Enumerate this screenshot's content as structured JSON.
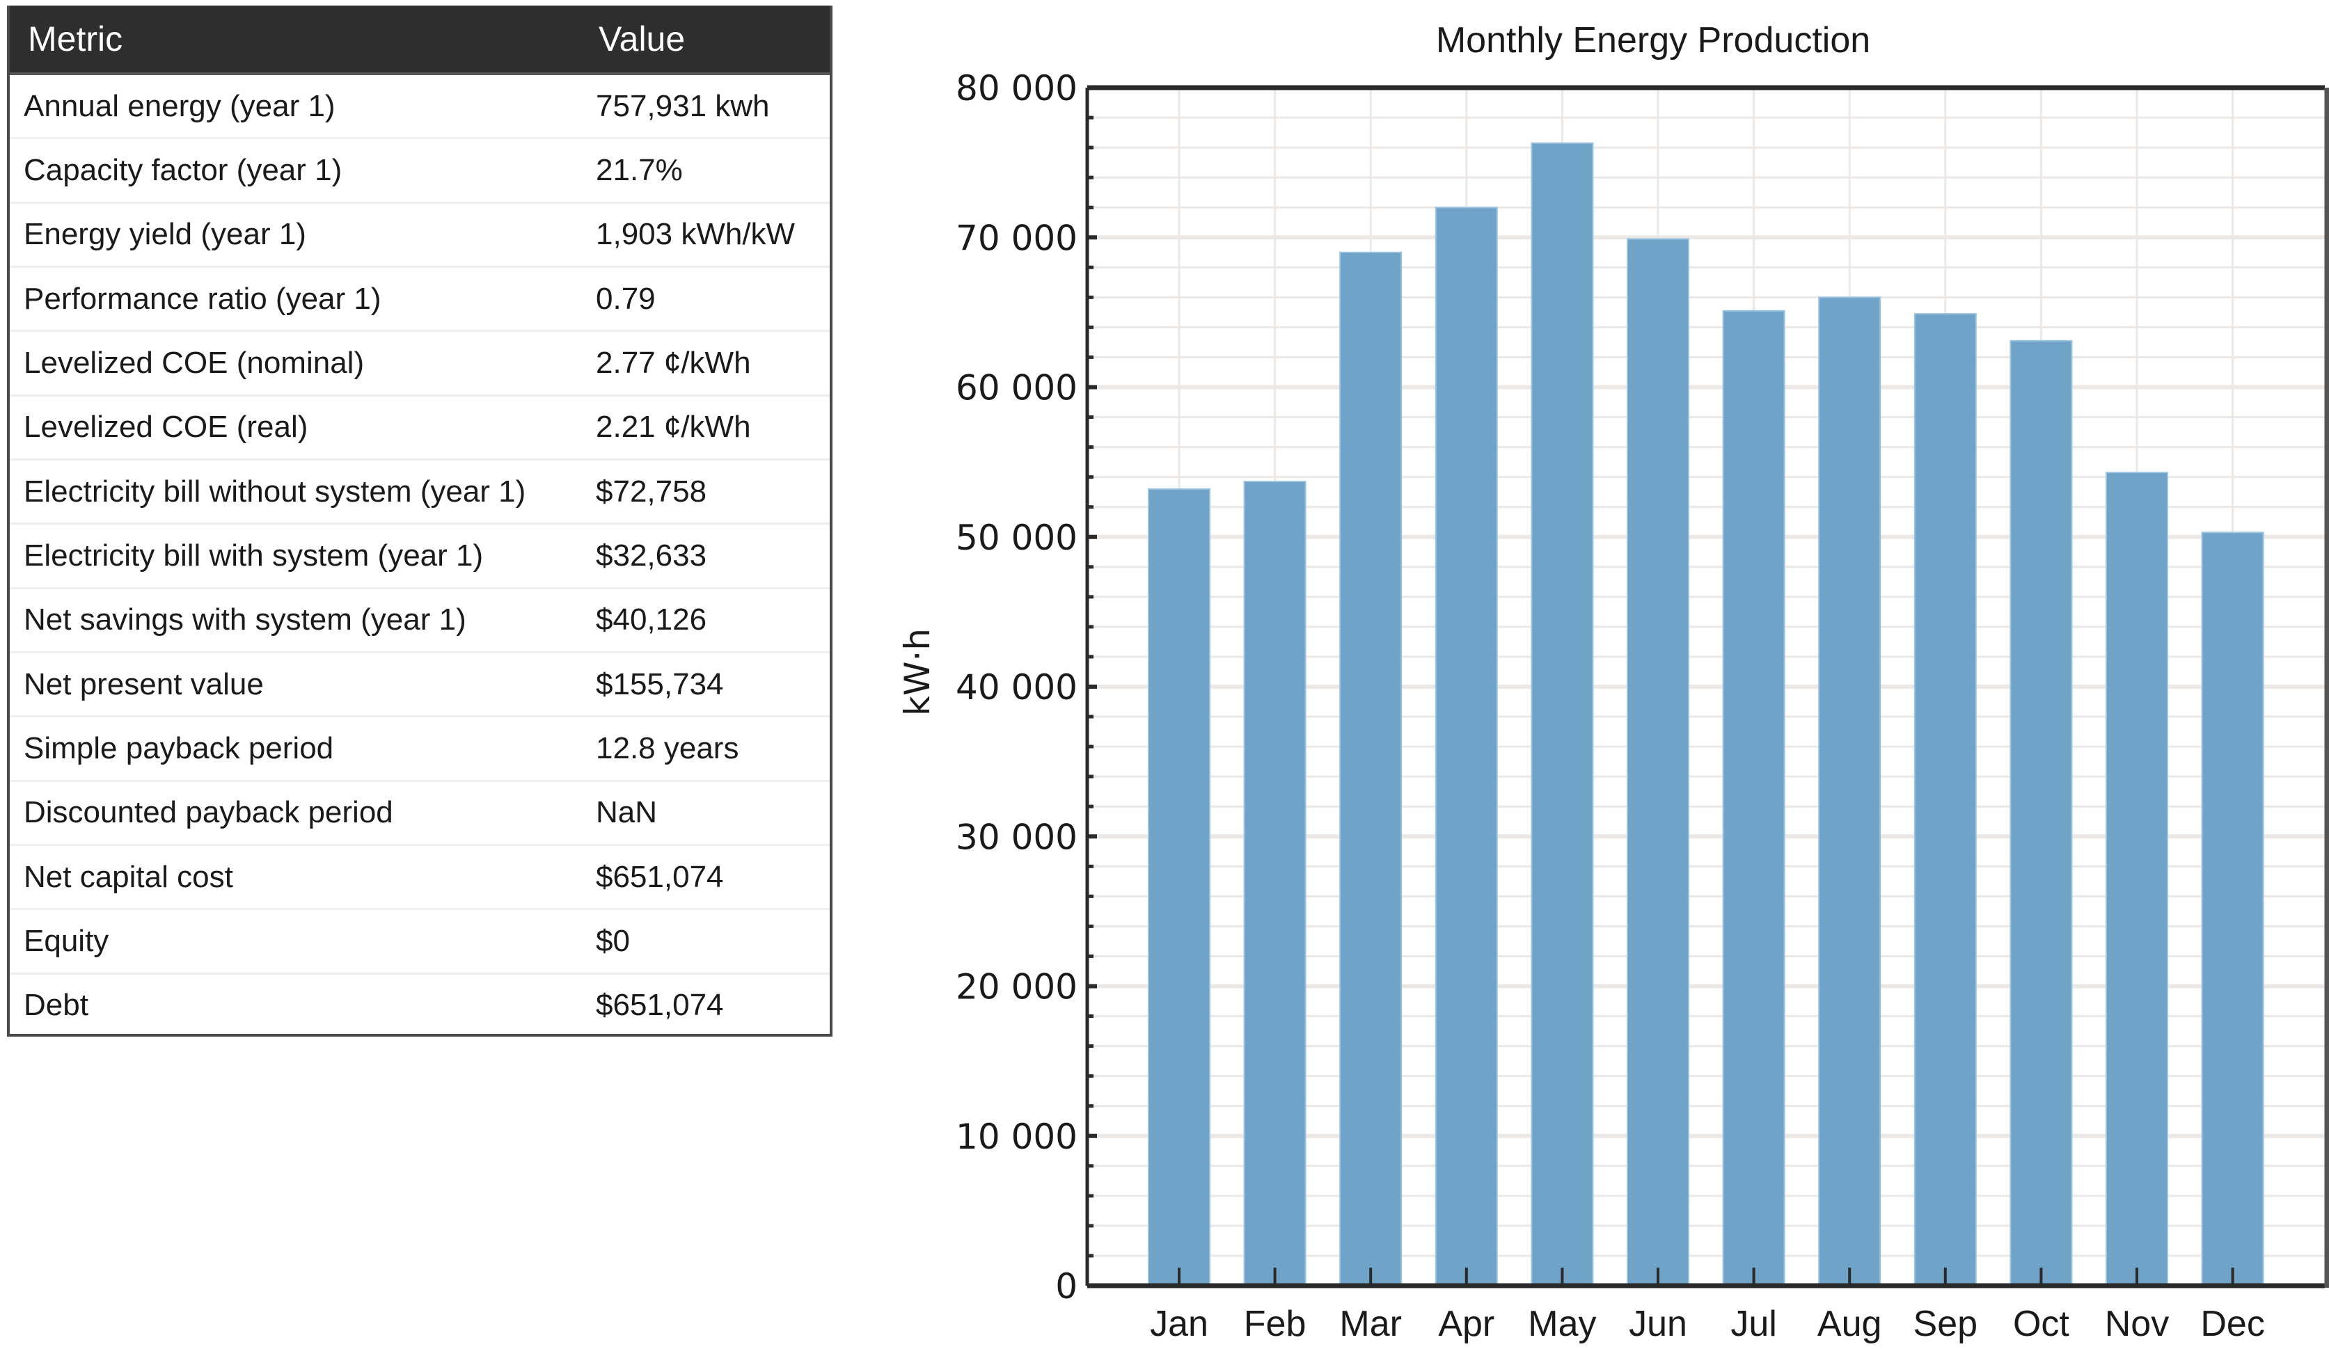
{
  "table": {
    "headers": {
      "metric": "Metric",
      "value": "Value"
    },
    "rows": [
      {
        "metric": "Annual energy (year 1)",
        "value": "757,931 kwh"
      },
      {
        "metric": "Capacity factor (year 1)",
        "value": "21.7%"
      },
      {
        "metric": "Energy yield (year 1)",
        "value": "1,903 kWh/kW"
      },
      {
        "metric": "Performance ratio (year 1)",
        "value": "0.79"
      },
      {
        "metric": "Levelized COE (nominal)",
        "value": "2.77 ¢/kWh"
      },
      {
        "metric": "Levelized COE (real)",
        "value": "2.21 ¢/kWh"
      },
      {
        "metric": "Electricity bill without system (year 1)",
        "value": "$72,758"
      },
      {
        "metric": "Electricity bill with system (year 1)",
        "value": "$32,633"
      },
      {
        "metric": "Net savings with system (year 1)",
        "value": "$40,126"
      },
      {
        "metric": "Net present value",
        "value": "$155,734"
      },
      {
        "metric": "Simple payback period",
        "value": "12.8 years"
      },
      {
        "metric": "Discounted payback period",
        "value": "NaN"
      },
      {
        "metric": "Net capital cost",
        "value": "$651,074"
      },
      {
        "metric": "Equity",
        "value": "$0"
      },
      {
        "metric": "Debt",
        "value": "$651,074"
      }
    ]
  },
  "chart_data": {
    "type": "bar",
    "title": "Monthly Energy Production",
    "xlabel": "",
    "ylabel": "kW·h",
    "categories": [
      "Jan",
      "Feb",
      "Mar",
      "Apr",
      "May",
      "Jun",
      "Jul",
      "Aug",
      "Sep",
      "Oct",
      "Nov",
      "Dec"
    ],
    "values": [
      53200,
      53700,
      69000,
      72000,
      76300,
      69900,
      65100,
      66000,
      64900,
      63100,
      54300,
      50300
    ],
    "ylim": [
      0,
      80000
    ],
    "yticks": [
      0,
      10000,
      20000,
      30000,
      40000,
      50000,
      60000,
      70000,
      80000
    ],
    "ytick_labels": [
      "0",
      "10 000",
      "20 000",
      "30 000",
      "40 000",
      "50 000",
      "60 000",
      "70 000",
      "80 000"
    ],
    "minor_tick_step": 2000,
    "grid": true,
    "legend": "none",
    "bar_color": "#6fa3c8",
    "grid_color": "#ece8e6",
    "axis_color": "#2a2a2a"
  }
}
